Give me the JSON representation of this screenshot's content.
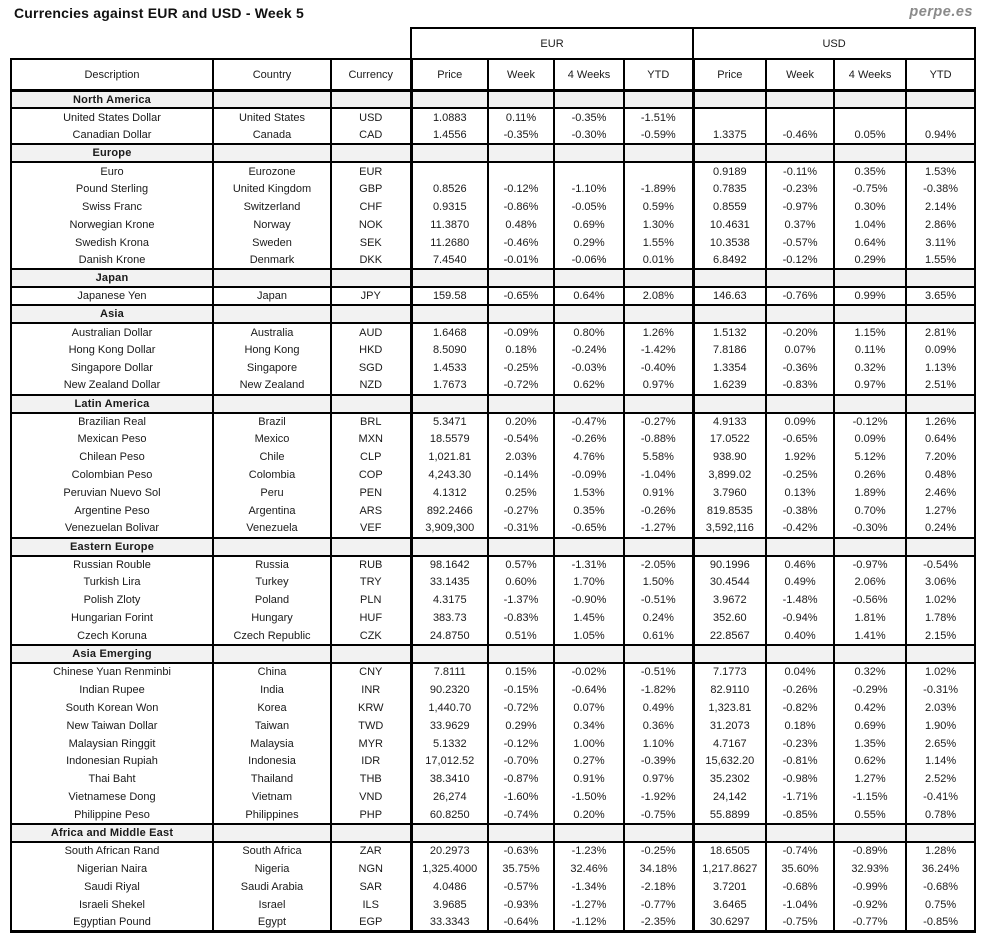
{
  "page": {
    "title": "Currencies against EUR and USD - Week 5",
    "logo": "perpe.es"
  },
  "colors": {
    "positive": "#009950",
    "negative": "#ff4343",
    "section_background": "#f2f2f2",
    "border": "#000000"
  },
  "chart_data": {
    "type": "table",
    "title": "Currencies against EUR and USD - Week 5",
    "group_headers": [
      "EUR",
      "USD"
    ],
    "columns": [
      "Description",
      "Country",
      "Currency",
      "Price",
      "Week",
      "4 Weeks",
      "YTD",
      "Price",
      "Week",
      "4 Weeks",
      "YTD"
    ],
    "sections": [
      {
        "name": "North America",
        "rows": [
          [
            "United States Dollar",
            "United States",
            "USD",
            "1.0883",
            "0.11%",
            "-0.35%",
            "-1.51%",
            "",
            "",
            "",
            ""
          ],
          [
            "Canadian Dollar",
            "Canada",
            "CAD",
            "1.4556",
            "-0.35%",
            "-0.30%",
            "-0.59%",
            "1.3375",
            "-0.46%",
            "0.05%",
            "0.94%"
          ]
        ]
      },
      {
        "name": "Europe",
        "rows": [
          [
            "Euro",
            "Eurozone",
            "EUR",
            "",
            "",
            "",
            "",
            "0.9189",
            "-0.11%",
            "0.35%",
            "1.53%"
          ],
          [
            "Pound Sterling",
            "United Kingdom",
            "GBP",
            "0.8526",
            "-0.12%",
            "-1.10%",
            "-1.89%",
            "0.7835",
            "-0.23%",
            "-0.75%",
            "-0.38%"
          ],
          [
            "Swiss Franc",
            "Switzerland",
            "CHF",
            "0.9315",
            "-0.86%",
            "-0.05%",
            "0.59%",
            "0.8559",
            "-0.97%",
            "0.30%",
            "2.14%"
          ],
          [
            "Norwegian Krone",
            "Norway",
            "NOK",
            "11.3870",
            "0.48%",
            "0.69%",
            "1.30%",
            "10.4631",
            "0.37%",
            "1.04%",
            "2.86%"
          ],
          [
            "Swedish Krona",
            "Sweden",
            "SEK",
            "11.2680",
            "-0.46%",
            "0.29%",
            "1.55%",
            "10.3538",
            "-0.57%",
            "0.64%",
            "3.11%"
          ],
          [
            "Danish Krone",
            "Denmark",
            "DKK",
            "7.4540",
            "-0.01%",
            "-0.06%",
            "0.01%",
            "6.8492",
            "-0.12%",
            "0.29%",
            "1.55%"
          ]
        ]
      },
      {
        "name": "Japan",
        "rows": [
          [
            "Japanese Yen",
            "Japan",
            "JPY",
            "159.58",
            "-0.65%",
            "0.64%",
            "2.08%",
            "146.63",
            "-0.76%",
            "0.99%",
            "3.65%"
          ]
        ]
      },
      {
        "name": "Asia",
        "rows": [
          [
            "Australian Dollar",
            "Australia",
            "AUD",
            "1.6468",
            "-0.09%",
            "0.80%",
            "1.26%",
            "1.5132",
            "-0.20%",
            "1.15%",
            "2.81%"
          ],
          [
            "Hong Kong Dollar",
            "Hong Kong",
            "HKD",
            "8.5090",
            "0.18%",
            "-0.24%",
            "-1.42%",
            "7.8186",
            "0.07%",
            "0.11%",
            "0.09%"
          ],
          [
            "Singapore Dollar",
            "Singapore",
            "SGD",
            "1.4533",
            "-0.25%",
            "-0.03%",
            "-0.40%",
            "1.3354",
            "-0.36%",
            "0.32%",
            "1.13%"
          ],
          [
            "New Zealand Dollar",
            "New Zealand",
            "NZD",
            "1.7673",
            "-0.72%",
            "0.62%",
            "0.97%",
            "1.6239",
            "-0.83%",
            "0.97%",
            "2.51%"
          ]
        ]
      },
      {
        "name": "Latin America",
        "rows": [
          [
            "Brazilian Real",
            "Brazil",
            "BRL",
            "5.3471",
            "0.20%",
            "-0.47%",
            "-0.27%",
            "4.9133",
            "0.09%",
            "-0.12%",
            "1.26%"
          ],
          [
            "Mexican Peso",
            "Mexico",
            "MXN",
            "18.5579",
            "-0.54%",
            "-0.26%",
            "-0.88%",
            "17.0522",
            "-0.65%",
            "0.09%",
            "0.64%"
          ],
          [
            "Chilean Peso",
            "Chile",
            "CLP",
            "1,021.81",
            "2.03%",
            "4.76%",
            "5.58%",
            "938.90",
            "1.92%",
            "5.12%",
            "7.20%"
          ],
          [
            "Colombian Peso",
            "Colombia",
            "COP",
            "4,243.30",
            "-0.14%",
            "-0.09%",
            "-1.04%",
            "3,899.02",
            "-0.25%",
            "0.26%",
            "0.48%"
          ],
          [
            "Peruvian Nuevo Sol",
            "Peru",
            "PEN",
            "4.1312",
            "0.25%",
            "1.53%",
            "0.91%",
            "3.7960",
            "0.13%",
            "1.89%",
            "2.46%"
          ],
          [
            "Argentine Peso",
            "Argentina",
            "ARS",
            "892.2466",
            "-0.27%",
            "0.35%",
            "-0.26%",
            "819.8535",
            "-0.38%",
            "0.70%",
            "1.27%"
          ],
          [
            "Venezuelan Bolivar",
            "Venezuela",
            "VEF",
            "3,909,300",
            "-0.31%",
            "-0.65%",
            "-1.27%",
            "3,592,116",
            "-0.42%",
            "-0.30%",
            "0.24%"
          ]
        ]
      },
      {
        "name": "Eastern Europe",
        "rows": [
          [
            "Russian Rouble",
            "Russia",
            "RUB",
            "98.1642",
            "0.57%",
            "-1.31%",
            "-2.05%",
            "90.1996",
            "0.46%",
            "-0.97%",
            "-0.54%"
          ],
          [
            "Turkish Lira",
            "Turkey",
            "TRY",
            "33.1435",
            "0.60%",
            "1.70%",
            "1.50%",
            "30.4544",
            "0.49%",
            "2.06%",
            "3.06%"
          ],
          [
            "Polish Zloty",
            "Poland",
            "PLN",
            "4.3175",
            "-1.37%",
            "-0.90%",
            "-0.51%",
            "3.9672",
            "-1.48%",
            "-0.56%",
            "1.02%"
          ],
          [
            "Hungarian Forint",
            "Hungary",
            "HUF",
            "383.73",
            "-0.83%",
            "1.45%",
            "0.24%",
            "352.60",
            "-0.94%",
            "1.81%",
            "1.78%"
          ],
          [
            "Czech Koruna",
            "Czech Republic",
            "CZK",
            "24.8750",
            "0.51%",
            "1.05%",
            "0.61%",
            "22.8567",
            "0.40%",
            "1.41%",
            "2.15%"
          ]
        ]
      },
      {
        "name": "Asia Emerging",
        "rows": [
          [
            "Chinese Yuan Renminbi",
            "China",
            "CNY",
            "7.8111",
            "0.15%",
            "-0.02%",
            "-0.51%",
            "7.1773",
            "0.04%",
            "0.32%",
            "1.02%"
          ],
          [
            "Indian Rupee",
            "India",
            "INR",
            "90.2320",
            "-0.15%",
            "-0.64%",
            "-1.82%",
            "82.9110",
            "-0.26%",
            "-0.29%",
            "-0.31%"
          ],
          [
            "South Korean Won",
            "Korea",
            "KRW",
            "1,440.70",
            "-0.72%",
            "0.07%",
            "0.49%",
            "1,323.81",
            "-0.82%",
            "0.42%",
            "2.03%"
          ],
          [
            "New Taiwan Dollar",
            "Taiwan",
            "TWD",
            "33.9629",
            "0.29%",
            "0.34%",
            "0.36%",
            "31.2073",
            "0.18%",
            "0.69%",
            "1.90%"
          ],
          [
            "Malaysian Ringgit",
            "Malaysia",
            "MYR",
            "5.1332",
            "-0.12%",
            "1.00%",
            "1.10%",
            "4.7167",
            "-0.23%",
            "1.35%",
            "2.65%"
          ],
          [
            "Indonesian Rupiah",
            "Indonesia",
            "IDR",
            "17,012.52",
            "-0.70%",
            "0.27%",
            "-0.39%",
            "15,632.20",
            "-0.81%",
            "0.62%",
            "1.14%"
          ],
          [
            "Thai Baht",
            "Thailand",
            "THB",
            "38.3410",
            "-0.87%",
            "0.91%",
            "0.97%",
            "35.2302",
            "-0.98%",
            "1.27%",
            "2.52%"
          ],
          [
            "Vietnamese Dong",
            "Vietnam",
            "VND",
            "26,274",
            "-1.60%",
            "-1.50%",
            "-1.92%",
            "24,142",
            "-1.71%",
            "-1.15%",
            "-0.41%"
          ],
          [
            "Philippine Peso",
            "Philippines",
            "PHP",
            "60.8250",
            "-0.74%",
            "0.20%",
            "-0.75%",
            "55.8899",
            "-0.85%",
            "0.55%",
            "0.78%"
          ]
        ]
      },
      {
        "name": "Africa and Middle East",
        "rows": [
          [
            "South African Rand",
            "South Africa",
            "ZAR",
            "20.2973",
            "-0.63%",
            "-1.23%",
            "-0.25%",
            "18.6505",
            "-0.74%",
            "-0.89%",
            "1.28%"
          ],
          [
            "Nigerian Naira",
            "Nigeria",
            "NGN",
            "1,325.4000",
            "35.75%",
            "32.46%",
            "34.18%",
            "1,217.8627",
            "35.60%",
            "32.93%",
            "36.24%"
          ],
          [
            "Saudi Riyal",
            "Saudi Arabia",
            "SAR",
            "4.0486",
            "-0.57%",
            "-1.34%",
            "-2.18%",
            "3.7201",
            "-0.68%",
            "-0.99%",
            "-0.68%"
          ],
          [
            "Israeli Shekel",
            "Israel",
            "ILS",
            "3.9685",
            "-0.93%",
            "-1.27%",
            "-0.77%",
            "3.6465",
            "-1.04%",
            "-0.92%",
            "0.75%"
          ],
          [
            "Egyptian Pound",
            "Egypt",
            "EGP",
            "33.3343",
            "-0.64%",
            "-1.12%",
            "-2.35%",
            "30.6297",
            "-0.75%",
            "-0.77%",
            "-0.85%"
          ]
        ]
      }
    ]
  }
}
